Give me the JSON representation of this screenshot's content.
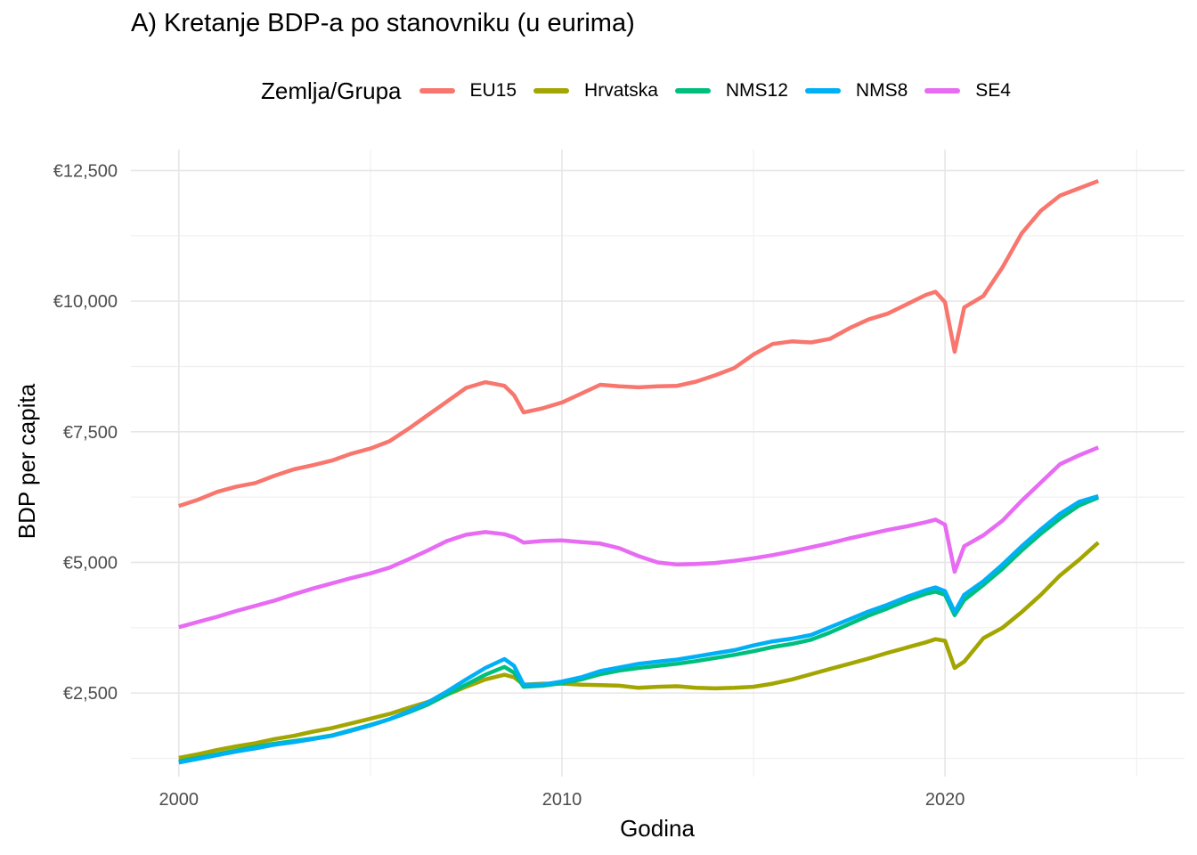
{
  "chart_data": {
    "type": "line",
    "title": "A) Kretanje BDP-a po stanovniku (u eurima)",
    "xlabel": "Godina",
    "ylabel": "BDP per capita",
    "legend_title": "Zemlja/Grupa",
    "legend_position": "top",
    "grid": true,
    "xlim": [
      1998.75,
      2026.25
    ],
    "ylim": [
      900,
      12900
    ],
    "x_ticks": [
      2000,
      2010,
      2020
    ],
    "x_tick_labels": [
      "2000",
      "2010",
      "2020"
    ],
    "y_ticks": [
      2500,
      5000,
      7500,
      10000,
      12500
    ],
    "y_tick_labels": [
      "€2,500",
      "€5,000",
      "€7,500",
      "€10,000",
      "€12,500"
    ],
    "x": [
      2000,
      2000.5,
      2001,
      2001.5,
      2002,
      2002.5,
      2003,
      2003.5,
      2004,
      2004.5,
      2005,
      2005.5,
      2006,
      2006.5,
      2007,
      2007.5,
      2008,
      2008.5,
      2008.75,
      2009,
      2009.5,
      2010,
      2010.5,
      2011,
      2011.5,
      2012,
      2012.5,
      2013,
      2013.5,
      2014,
      2014.5,
      2015,
      2015.5,
      2016,
      2016.5,
      2017,
      2017.5,
      2018,
      2018.5,
      2019,
      2019.5,
      2019.75,
      2020,
      2020.25,
      2020.5,
      2021,
      2021.5,
      2022,
      2022.5,
      2023,
      2023.5,
      2024
    ],
    "series": [
      {
        "name": "EU15",
        "color": "#F8766D",
        "values": [
          6080,
          6200,
          6350,
          6450,
          6520,
          6660,
          6780,
          6860,
          6950,
          7080,
          7180,
          7320,
          7560,
          7820,
          8080,
          8340,
          8450,
          8380,
          8200,
          7870,
          7950,
          8060,
          8230,
          8400,
          8370,
          8350,
          8370,
          8380,
          8460,
          8580,
          8720,
          8980,
          9180,
          9230,
          9210,
          9280,
          9480,
          9650,
          9760,
          9940,
          10120,
          10180,
          9980,
          9030,
          9880,
          10100,
          10650,
          11300,
          11730,
          12020,
          12160,
          12300
        ]
      },
      {
        "name": "Hrvatska",
        "color": "#A3A500",
        "values": [
          1260,
          1330,
          1410,
          1480,
          1540,
          1620,
          1680,
          1760,
          1830,
          1920,
          2010,
          2100,
          2220,
          2330,
          2470,
          2620,
          2760,
          2850,
          2800,
          2660,
          2680,
          2680,
          2660,
          2650,
          2640,
          2600,
          2620,
          2630,
          2600,
          2590,
          2600,
          2620,
          2680,
          2760,
          2860,
          2960,
          3060,
          3160,
          3270,
          3370,
          3470,
          3530,
          3500,
          2980,
          3100,
          3550,
          3750,
          4050,
          4380,
          4750,
          5050,
          5380
        ]
      },
      {
        "name": "NMS12",
        "color": "#00BF7D",
        "values": [
          1190,
          1260,
          1330,
          1400,
          1470,
          1530,
          1580,
          1630,
          1690,
          1790,
          1890,
          2000,
          2130,
          2280,
          2470,
          2660,
          2850,
          3000,
          2890,
          2620,
          2640,
          2690,
          2760,
          2860,
          2930,
          2980,
          3020,
          3060,
          3110,
          3170,
          3230,
          3300,
          3380,
          3440,
          3520,
          3660,
          3820,
          3980,
          4120,
          4270,
          4400,
          4440,
          4380,
          3990,
          4280,
          4570,
          4880,
          5230,
          5550,
          5840,
          6090,
          6240
        ]
      },
      {
        "name": "NMS8",
        "color": "#00B0F6",
        "values": [
          1170,
          1240,
          1310,
          1380,
          1440,
          1510,
          1560,
          1620,
          1680,
          1780,
          1880,
          2000,
          2150,
          2320,
          2530,
          2760,
          2980,
          3150,
          3020,
          2660,
          2660,
          2720,
          2800,
          2920,
          2990,
          3060,
          3100,
          3140,
          3200,
          3260,
          3320,
          3410,
          3490,
          3540,
          3610,
          3760,
          3910,
          4060,
          4190,
          4340,
          4470,
          4520,
          4450,
          4050,
          4380,
          4640,
          4960,
          5310,
          5630,
          5930,
          6160,
          6270
        ]
      },
      {
        "name": "SE4",
        "color": "#E76BF3",
        "values": [
          3760,
          3860,
          3960,
          4070,
          4170,
          4270,
          4390,
          4500,
          4600,
          4700,
          4790,
          4900,
          5060,
          5230,
          5410,
          5530,
          5580,
          5540,
          5480,
          5380,
          5410,
          5420,
          5390,
          5360,
          5270,
          5120,
          5000,
          4960,
          4970,
          4990,
          5030,
          5080,
          5140,
          5210,
          5290,
          5370,
          5460,
          5540,
          5620,
          5690,
          5770,
          5820,
          5720,
          4820,
          5310,
          5520,
          5800,
          6180,
          6530,
          6880,
          7050,
          7200
        ]
      }
    ]
  }
}
